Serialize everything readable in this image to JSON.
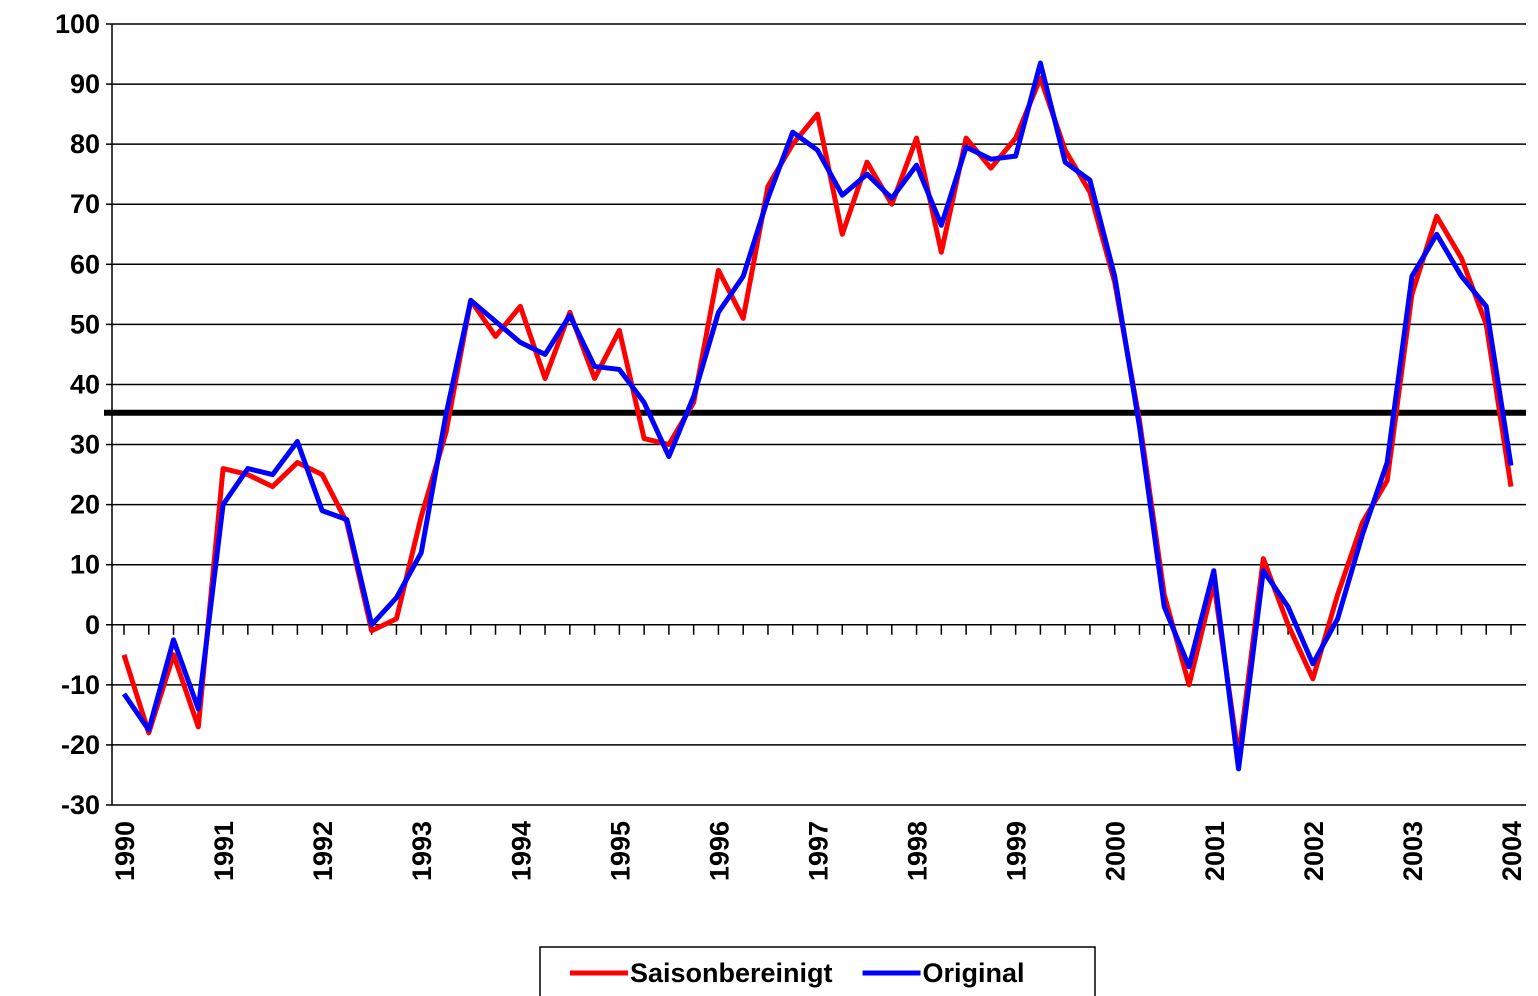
{
  "chart_data": {
    "type": "line",
    "x": [
      1990,
      1990.25,
      1990.5,
      1990.75,
      1991,
      1991.25,
      1991.5,
      1991.75,
      1992,
      1992.25,
      1992.5,
      1992.75,
      1993,
      1993.25,
      1993.5,
      1993.75,
      1994,
      1994.25,
      1994.5,
      1994.75,
      1995,
      1995.25,
      1995.5,
      1995.75,
      1996,
      1996.25,
      1996.5,
      1996.75,
      1997,
      1997.25,
      1997.5,
      1997.75,
      1998,
      1998.25,
      1998.5,
      1998.75,
      1999,
      1999.25,
      1999.5,
      1999.75,
      2000,
      2000.25,
      2000.5,
      2000.75,
      2001,
      2001.25,
      2001.5,
      2001.75,
      2002,
      2002.25,
      2002.5,
      2002.75,
      2003,
      2003.25,
      2003.5,
      2003.75,
      2004
    ],
    "series": [
      {
        "name": "Saisonbereinigt",
        "color": "#ff0000",
        "values": [
          -5,
          -18,
          -5,
          -17,
          26,
          25,
          23,
          27,
          25,
          17,
          -1,
          1,
          18,
          32,
          54,
          48,
          53,
          41,
          52,
          41,
          49,
          31,
          30,
          37,
          59,
          51,
          73,
          80,
          85,
          65,
          77,
          70,
          81,
          62,
          81,
          76,
          81,
          91,
          79,
          72,
          57,
          34,
          5,
          -10,
          7,
          -22,
          11,
          0,
          -9,
          5,
          17,
          24,
          55,
          68,
          61,
          50,
          23
        ]
      },
      {
        "name": "Original",
        "color": "#0000ff",
        "values": [
          -11.5,
          -17.5,
          -2.5,
          -14,
          20,
          26,
          25,
          30.5,
          19,
          17.5,
          0,
          4.5,
          12,
          35,
          54,
          50.5,
          47,
          45,
          51.5,
          43,
          42.5,
          37,
          28,
          38,
          52,
          58,
          71,
          82,
          79,
          71.5,
          75,
          71,
          76.5,
          66.5,
          79.5,
          77.5,
          78,
          93.5,
          77,
          74,
          58,
          33,
          3,
          -7,
          9,
          -24,
          9,
          3,
          -6.5,
          1,
          15,
          27,
          58,
          65,
          58,
          53,
          26.5
        ]
      }
    ],
    "reference_line": 35.3,
    "xlim": [
      1990,
      2004
    ],
    "xticks": [
      1990,
      1991,
      1992,
      1993,
      1994,
      1995,
      1996,
      1997,
      1998,
      1999,
      2000,
      2001,
      2002,
      2003,
      2004
    ],
    "ylim": [
      -30,
      100
    ],
    "yticks": [
      -30,
      -20,
      -10,
      0,
      10,
      20,
      30,
      40,
      50,
      60,
      70,
      80,
      90,
      100
    ],
    "grid": true
  }
}
